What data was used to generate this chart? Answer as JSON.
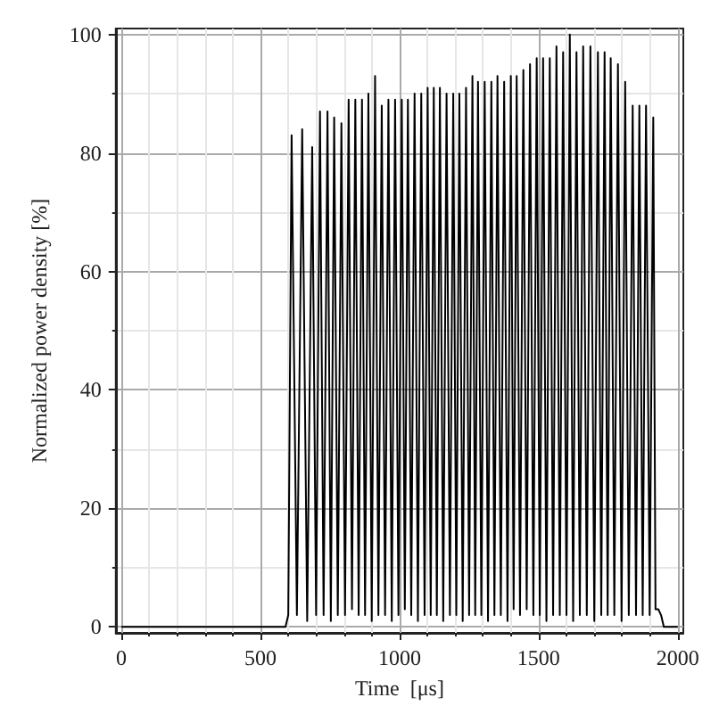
{
  "chart_data": {
    "type": "line",
    "xlabel": "Time  [μs]",
    "ylabel": "Normalized power density [%]",
    "x": [
      0,
      590,
      600,
      612,
      631,
      650,
      668,
      686,
      700,
      714,
      727,
      741,
      753,
      765,
      778,
      791,
      804,
      817,
      829,
      841,
      853,
      865,
      876,
      888,
      900,
      912,
      924,
      936,
      948,
      960,
      972,
      984,
      996,
      1008,
      1019,
      1030,
      1042,
      1054,
      1066,
      1078,
      1090,
      1101,
      1112,
      1123,
      1134,
      1145,
      1157,
      1169,
      1181,
      1193,
      1204,
      1215,
      1227,
      1239,
      1250,
      1262,
      1272,
      1282,
      1294,
      1306,
      1318,
      1330,
      1341,
      1352,
      1364,
      1376,
      1388,
      1400,
      1410,
      1421,
      1433,
      1445,
      1457,
      1469,
      1481,
      1493,
      1504,
      1516,
      1528,
      1540,
      1552,
      1564,
      1576,
      1588,
      1600,
      1612,
      1624,
      1636,
      1648,
      1660,
      1673,
      1686,
      1700,
      1713,
      1725,
      1737,
      1748,
      1759,
      1772,
      1785,
      1798,
      1811,
      1824,
      1838,
      1850,
      1862,
      1874,
      1886,
      1899,
      1912,
      1920,
      1930,
      1940,
      1950,
      2000
    ],
    "series": [
      {
        "color": "#000000",
        "values": [
          0,
          0,
          2,
          83,
          2,
          84,
          1,
          81,
          2,
          87,
          2,
          87,
          1,
          86,
          2,
          85,
          2,
          89,
          3,
          89,
          2,
          89,
          2,
          90,
          1,
          93,
          2,
          88,
          2,
          89,
          1,
          89,
          2,
          89,
          3,
          89,
          2,
          90,
          1,
          90,
          2,
          91,
          2,
          91,
          2,
          91,
          1,
          90,
          2,
          90,
          2,
          90,
          1,
          91,
          2,
          93,
          2,
          92,
          2,
          92,
          1,
          92,
          2,
          93,
          2,
          92,
          1,
          93,
          3,
          93,
          2,
          94,
          3,
          95,
          2,
          96,
          2,
          96,
          1,
          96,
          2,
          98,
          2,
          97,
          2,
          100,
          1,
          97,
          2,
          98,
          2,
          98,
          1,
          97,
          2,
          97,
          2,
          96,
          2,
          95,
          1,
          92,
          2,
          88,
          2,
          88,
          2,
          88,
          2,
          86,
          3,
          3,
          2,
          0,
          0
        ]
      }
    ],
    "xlim": [
      -20,
      2020
    ],
    "xticks": [
      0,
      500,
      1000,
      1500,
      2000
    ],
    "ylim": [
      -1,
      101
    ],
    "yticks": [
      0,
      20,
      40,
      60,
      80,
      100
    ],
    "grid": true,
    "marker": "none",
    "line_style": "solid"
  }
}
